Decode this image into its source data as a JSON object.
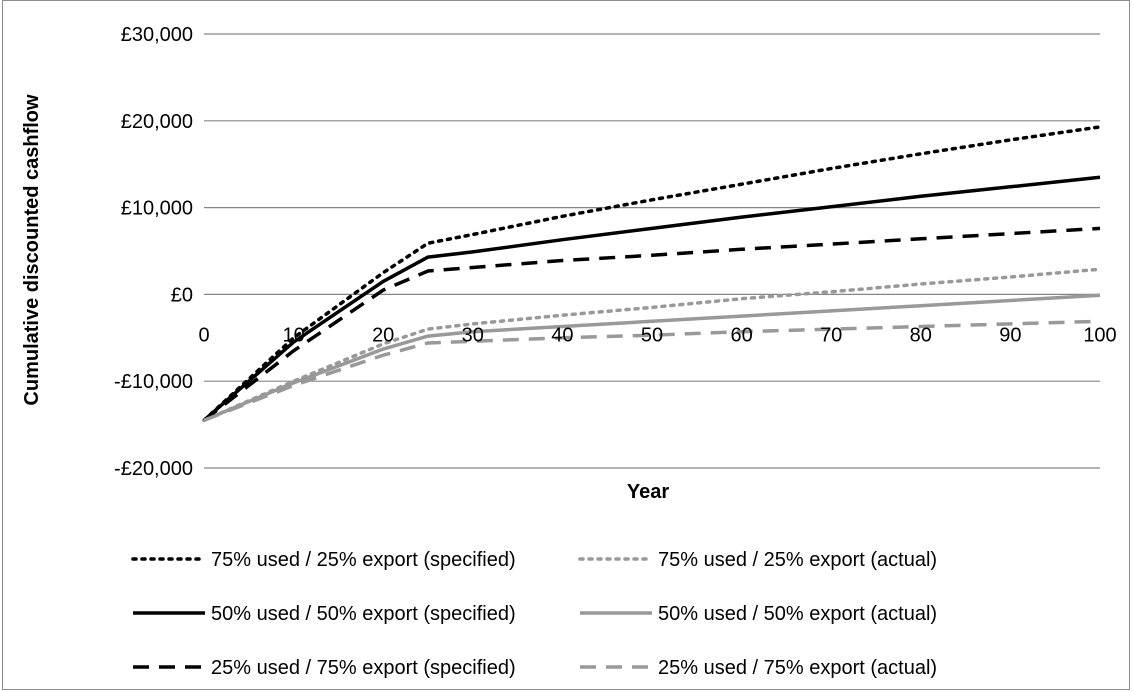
{
  "chart_data": {
    "type": "line",
    "title": "",
    "xlabel": "Year",
    "ylabel": "Cumulative discounted cashflow",
    "xlim": [
      0,
      100
    ],
    "ylim": [
      -20000,
      30000
    ],
    "x_ticks": [
      0,
      10,
      20,
      30,
      40,
      50,
      60,
      70,
      80,
      90,
      100
    ],
    "x_tick_labels": [
      "0",
      "10",
      "20",
      "30",
      "40",
      "50",
      "60",
      "70",
      "80",
      "90",
      "100"
    ],
    "y_ticks": [
      -20000,
      -10000,
      0,
      10000,
      20000,
      30000
    ],
    "y_tick_labels": [
      "-£20,000",
      "-£10,000",
      "£0",
      "£10,000",
      "£20,000",
      "£30,000"
    ],
    "grid": "horizontal",
    "legend_position": "bottom",
    "series": [
      {
        "name": "75% used / 25% export (specified)",
        "color": "#000000",
        "dash": "dotted",
        "x": [
          0,
          10,
          20,
          25,
          30,
          40,
          50,
          60,
          70,
          80,
          90,
          100
        ],
        "y": [
          -14500,
          -5000,
          2500,
          5900,
          6900,
          9000,
          10900,
          12700,
          14500,
          16200,
          17800,
          19300
        ]
      },
      {
        "name": "75% used / 25% export (actual)",
        "color": "#999999",
        "dash": "dotted",
        "x": [
          0,
          10,
          20,
          25,
          30,
          40,
          50,
          60,
          70,
          80,
          90,
          100
        ],
        "y": [
          -14500,
          -10000,
          -5700,
          -4000,
          -3400,
          -2400,
          -1500,
          -500,
          300,
          1200,
          2000,
          2900
        ]
      },
      {
        "name": "50% used / 50% export (specified)",
        "color": "#000000",
        "dash": "solid",
        "x": [
          0,
          10,
          20,
          25,
          30,
          40,
          50,
          60,
          70,
          80,
          90,
          100
        ],
        "y": [
          -14500,
          -5500,
          1500,
          4300,
          4900,
          6300,
          7600,
          8900,
          10100,
          11300,
          12400,
          13500
        ]
      },
      {
        "name": "50% used / 50% export (actual)",
        "color": "#999999",
        "dash": "solid",
        "x": [
          0,
          10,
          20,
          25,
          30,
          40,
          50,
          60,
          70,
          80,
          90,
          100
        ],
        "y": [
          -14500,
          -10200,
          -6300,
          -4800,
          -4300,
          -3700,
          -3100,
          -2500,
          -1900,
          -1300,
          -700,
          -100
        ]
      },
      {
        "name": "25% used / 75% export (specified)",
        "color": "#000000",
        "dash": "dashed",
        "x": [
          0,
          10,
          20,
          25,
          30,
          40,
          50,
          60,
          70,
          80,
          90,
          100
        ],
        "y": [
          -14500,
          -6500,
          500,
          2700,
          3100,
          3900,
          4500,
          5200,
          5800,
          6400,
          7000,
          7600
        ]
      },
      {
        "name": "25% used / 75% export (actual)",
        "color": "#999999",
        "dash": "dashed",
        "x": [
          0,
          10,
          20,
          25,
          30,
          40,
          50,
          60,
          70,
          80,
          90,
          100
        ],
        "y": [
          -14500,
          -10500,
          -7000,
          -5600,
          -5400,
          -5000,
          -4700,
          -4300,
          -4000,
          -3700,
          -3400,
          -3100
        ]
      }
    ]
  }
}
